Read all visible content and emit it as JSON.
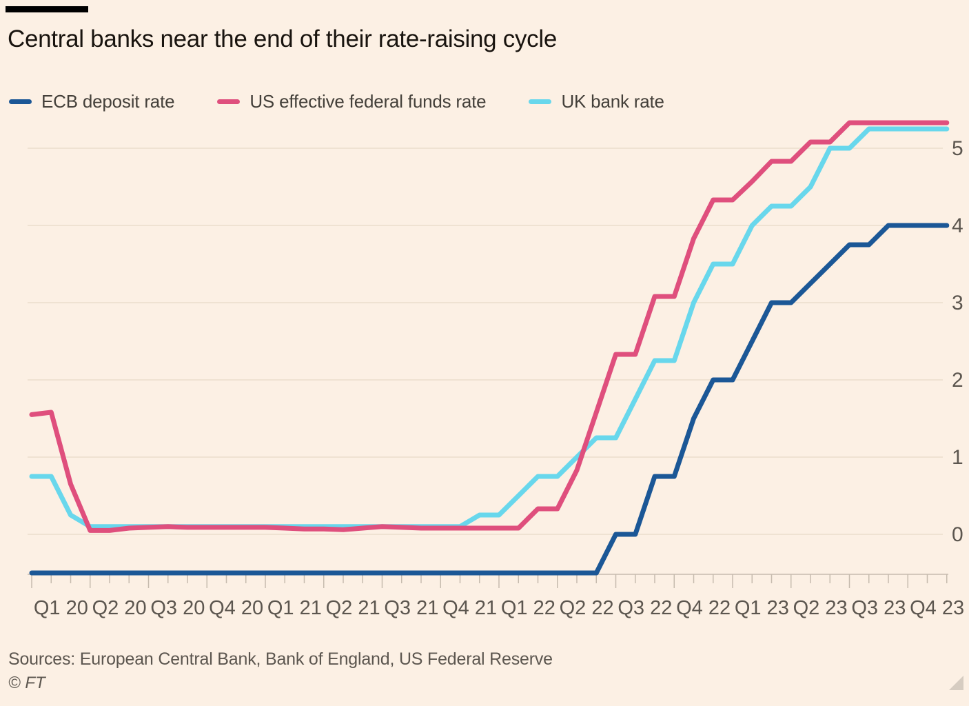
{
  "page": {
    "background": "#fcf0e4"
  },
  "header": {
    "title": "Central banks near the end of their rate-raising cycle"
  },
  "footer": {
    "sources": "Sources: European Central Bank, Bank of England, US Federal Reserve",
    "copyright": "© FT"
  },
  "chart_data": {
    "type": "line",
    "title": "Central banks near the end of their rate-raising cycle",
    "xlabel": "",
    "ylabel": "",
    "x_unit": "month",
    "x_range": [
      "2020-01",
      "2023-12"
    ],
    "x_tick_labels": [
      "Q1 20",
      "Q2 20",
      "Q3 20",
      "Q4 20",
      "Q1 21",
      "Q2 21",
      "Q3 21",
      "Q4 21",
      "Q1 22",
      "Q2 22",
      "Q3 22",
      "Q4 22",
      "Q1 23",
      "Q2 23",
      "Q3 23",
      "Q4 23"
    ],
    "y_ticks": [
      0,
      1,
      2,
      3,
      4,
      5
    ],
    "ylim": [
      -0.56,
      5.45
    ],
    "y_axis_side": "right",
    "grid": "horizontal",
    "legend_position": "top",
    "colors": {
      "background": "#fcf0e4",
      "gridline": "#efe2d2",
      "axis": "#c6bbae",
      "tick_label": "#5c564f",
      "title_text": "#19140f",
      "legend_text": "#44403a"
    },
    "series": [
      {
        "name": "ECB deposit rate",
        "color": "#1b5796",
        "values": [
          -0.5,
          -0.5,
          -0.5,
          -0.5,
          -0.5,
          -0.5,
          -0.5,
          -0.5,
          -0.5,
          -0.5,
          -0.5,
          -0.5,
          -0.5,
          -0.5,
          -0.5,
          -0.5,
          -0.5,
          -0.5,
          -0.5,
          -0.5,
          -0.5,
          -0.5,
          -0.5,
          -0.5,
          -0.5,
          -0.5,
          -0.5,
          -0.5,
          -0.5,
          -0.5,
          0,
          0,
          0.75,
          0.75,
          1.5,
          2.0,
          2.0,
          2.5,
          3.0,
          3.0,
          3.25,
          3.5,
          3.75,
          3.75,
          4.0,
          4.0,
          4.0,
          4.0
        ]
      },
      {
        "name": "US effective federal funds rate",
        "color": "#df4f7d",
        "values": [
          1.55,
          1.58,
          0.65,
          0.05,
          0.05,
          0.08,
          0.09,
          0.1,
          0.09,
          0.09,
          0.09,
          0.09,
          0.09,
          0.08,
          0.07,
          0.07,
          0.06,
          0.08,
          0.1,
          0.09,
          0.08,
          0.08,
          0.08,
          0.08,
          0.08,
          0.08,
          0.33,
          0.33,
          0.83,
          1.58,
          2.33,
          2.33,
          3.08,
          3.08,
          3.83,
          4.33,
          4.33,
          4.57,
          4.83,
          4.83,
          5.08,
          5.08,
          5.33,
          5.33,
          5.33,
          5.33,
          5.33,
          5.33
        ]
      },
      {
        "name": "UK bank rate",
        "color": "#68d7ec",
        "values": [
          0.75,
          0.75,
          0.25,
          0.1,
          0.1,
          0.1,
          0.1,
          0.1,
          0.1,
          0.1,
          0.1,
          0.1,
          0.1,
          0.1,
          0.1,
          0.1,
          0.1,
          0.1,
          0.1,
          0.1,
          0.1,
          0.1,
          0.1,
          0.25,
          0.25,
          0.5,
          0.75,
          0.75,
          1.0,
          1.25,
          1.25,
          1.75,
          2.25,
          2.25,
          3.0,
          3.5,
          3.5,
          4.0,
          4.25,
          4.25,
          4.5,
          5.0,
          5.0,
          5.25,
          5.25,
          5.25,
          5.25,
          5.25
        ]
      }
    ]
  }
}
